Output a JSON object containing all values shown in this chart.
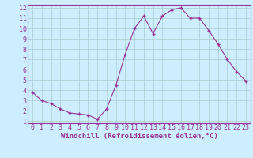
{
  "x": [
    0,
    1,
    2,
    3,
    4,
    5,
    6,
    7,
    8,
    9,
    10,
    11,
    12,
    13,
    14,
    15,
    16,
    17,
    18,
    19,
    20,
    21,
    22,
    23
  ],
  "y": [
    3.8,
    3.0,
    2.7,
    2.2,
    1.8,
    1.7,
    1.6,
    1.2,
    2.2,
    4.5,
    7.5,
    10.0,
    11.2,
    9.5,
    11.2,
    11.8,
    12.0,
    11.0,
    11.0,
    9.8,
    8.5,
    7.0,
    5.8,
    4.9
  ],
  "xlabel": "Windchill (Refroidissement éolien,°C)",
  "ylim": [
    1,
    12
  ],
  "xlim": [
    0,
    23
  ],
  "line_color": "#993399",
  "marker": "+",
  "bg_color": "#cceeff",
  "grid_color": "#aacccc",
  "tick_color": "#993399",
  "label_color": "#993399",
  "yticks": [
    1,
    2,
    3,
    4,
    5,
    6,
    7,
    8,
    9,
    10,
    11,
    12
  ],
  "xticks": [
    0,
    1,
    2,
    3,
    4,
    5,
    6,
    7,
    8,
    9,
    10,
    11,
    12,
    13,
    14,
    15,
    16,
    17,
    18,
    19,
    20,
    21,
    22,
    23
  ],
  "font_size": 6,
  "xlabel_font_size": 6.5,
  "marker_size": 3,
  "line_width": 0.8
}
